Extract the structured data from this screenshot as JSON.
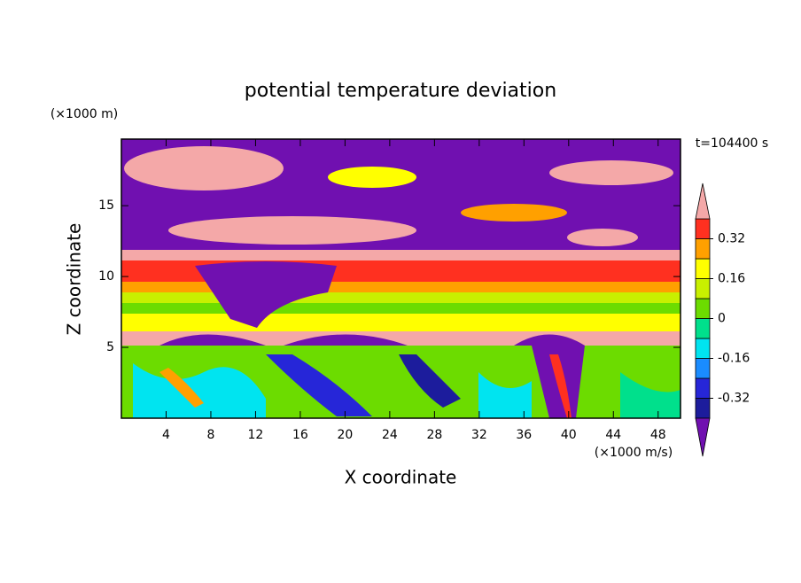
{
  "chart_data": {
    "type": "contour",
    "title": "potential temperature deviation",
    "x_label": "X coordinate",
    "y_label": "Z coordinate",
    "x_unit": "(×1000 m/s)",
    "y_unit": "(×1000 m)",
    "annotation": "t=104400 s",
    "xlim": [
      0,
      50
    ],
    "ylim": [
      0,
      19.7
    ],
    "xticks": [
      4,
      8,
      12,
      16,
      20,
      24,
      28,
      32,
      36,
      40,
      44,
      48
    ],
    "yticks": [
      5,
      10,
      15
    ],
    "levels": [
      -0.4,
      -0.32,
      -0.24,
      -0.16,
      -0.08,
      0,
      0.08,
      0.16,
      0.24,
      0.32,
      0.4
    ],
    "colors": [
      "#1c1c9c",
      "#2626d8",
      "#1a8cff",
      "#00e4f0",
      "#00e08c",
      "#6cdc00",
      "#c8f000",
      "#ffff00",
      "#ffa000",
      "#ff3020"
    ],
    "under_color": "#7010b0",
    "over_color": "#f4a8a8",
    "colorbar_ticks": [
      -0.32,
      -0.16,
      0,
      0.16,
      0.32
    ]
  }
}
